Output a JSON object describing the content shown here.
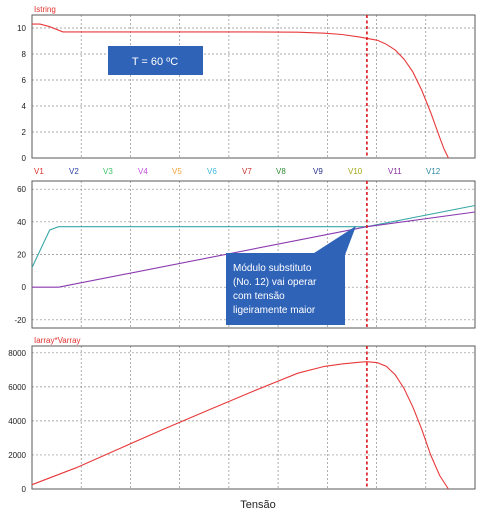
{
  "chart_data": [
    {
      "type": "line",
      "title": "Istring",
      "ylim": [
        0,
        11
      ],
      "yticks": [
        0,
        2,
        4,
        6,
        8,
        10
      ],
      "series": [
        {
          "color": "#e8393a",
          "x": [
            0.0,
            0.018,
            0.04,
            0.07,
            0.1,
            0.2,
            0.3,
            0.4,
            0.5,
            0.6,
            0.66,
            0.7,
            0.74,
            0.76,
            0.78,
            0.8,
            0.82,
            0.84,
            0.86,
            0.88,
            0.9,
            0.92,
            0.93,
            0.94
          ],
          "y": [
            10.3,
            10.3,
            10.1,
            9.7,
            9.7,
            9.7,
            9.7,
            9.7,
            9.7,
            9.68,
            9.6,
            9.5,
            9.3,
            9.18,
            9.05,
            8.75,
            8.3,
            7.6,
            6.6,
            5.2,
            3.5,
            1.6,
            0.7,
            0.0
          ]
        }
      ],
      "annotation": "T = 60 ºC",
      "annotation_color": "#2f63b8",
      "vline_x": 0.756,
      "vline_color": "#d9161c"
    },
    {
      "type": "line",
      "legend": [
        {
          "label": "V1",
          "color": "#e0302e"
        },
        {
          "label": "V2",
          "color": "#2a3ea8"
        },
        {
          "label": "V3",
          "color": "#3dc46a"
        },
        {
          "label": "V4",
          "color": "#c24ee0"
        },
        {
          "label": "V5",
          "color": "#f2a43a"
        },
        {
          "label": "V6",
          "color": "#3cb8d8"
        },
        {
          "label": "V7",
          "color": "#c8322e"
        },
        {
          "label": "V8",
          "color": "#2e8a34"
        },
        {
          "label": "V9",
          "color": "#262e8c"
        },
        {
          "label": "V10",
          "color": "#a6a814"
        },
        {
          "label": "V11",
          "color": "#8a2e9e"
        },
        {
          "label": "V12",
          "color": "#2e8aa0"
        }
      ],
      "ylim": [
        -25,
        65
      ],
      "yticks": [
        -20,
        0,
        20,
        40,
        60
      ],
      "series": [
        {
          "color": "#3aa8a8",
          "x": [
            0.0,
            0.04,
            0.06,
            0.756,
            1.0
          ],
          "y": [
            12,
            35,
            37,
            37,
            50
          ]
        },
        {
          "color": "#8a3ab0",
          "x": [
            0.0,
            0.06,
            0.756,
            1.0
          ],
          "y": [
            0,
            0,
            37,
            46
          ]
        }
      ],
      "annotation": "Módulo substituto\n(No. 12) vai operar\ncom tensão\nligeiramente maior",
      "annotation_color": "#2f63b8",
      "vline_x": 0.756,
      "vline_color": "#d9161c"
    },
    {
      "type": "line",
      "title": "Iarray*Varray",
      "ylim": [
        0,
        8400
      ],
      "yticks": [
        0,
        2000,
        4000,
        6000,
        8000
      ],
      "xlabel": "Tensão",
      "series": [
        {
          "color": "#e8393a",
          "x": [
            0.0,
            0.1,
            0.2,
            0.3,
            0.4,
            0.5,
            0.6,
            0.66,
            0.7,
            0.74,
            0.756,
            0.78,
            0.8,
            0.82,
            0.84,
            0.86,
            0.88,
            0.9,
            0.92,
            0.94
          ],
          "y": [
            250,
            1250,
            2400,
            3550,
            4650,
            5750,
            6800,
            7200,
            7350,
            7450,
            7480,
            7420,
            7200,
            6700,
            5900,
            4800,
            3500,
            2000,
            800,
            0
          ]
        }
      ],
      "vline_x": 0.756,
      "vline_color": "#d9161c"
    }
  ]
}
